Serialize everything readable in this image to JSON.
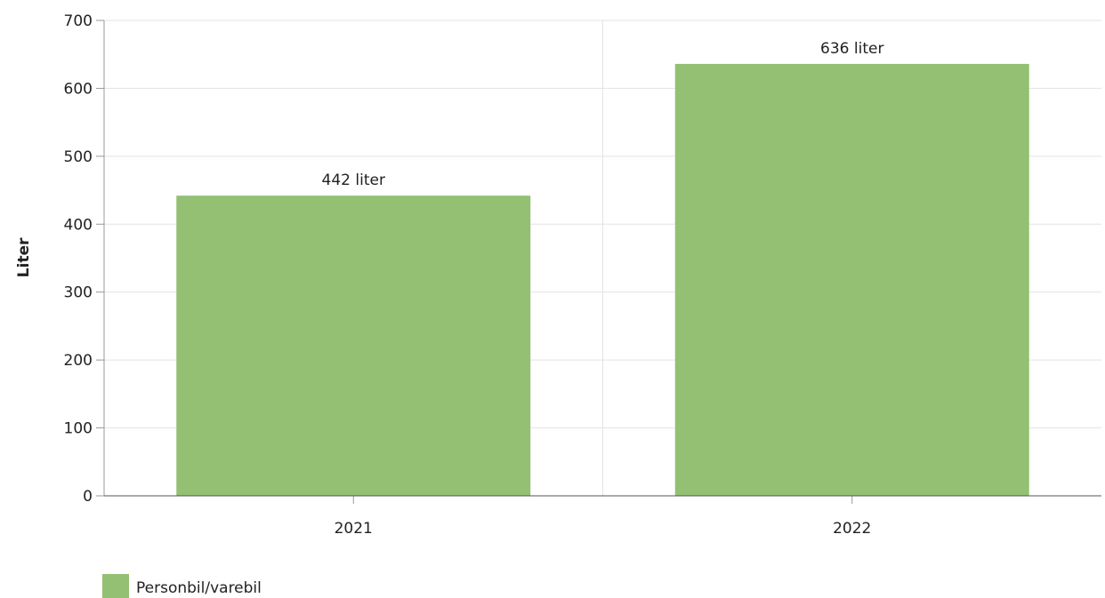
{
  "chart_data": {
    "type": "bar",
    "categories": [
      "2021",
      "2022"
    ],
    "series": [
      {
        "name": "Personbil/varebil",
        "values": [
          442,
          636
        ],
        "data_labels": [
          "442 liter",
          "636 liter"
        ],
        "color": "#93c072"
      }
    ],
    "title": "",
    "xlabel": "",
    "ylabel": "Liter",
    "ylim": [
      0,
      700
    ],
    "yticks": [
      0,
      100,
      200,
      300,
      400,
      500,
      600,
      700
    ],
    "grid": true,
    "legend": "bottom-left"
  }
}
